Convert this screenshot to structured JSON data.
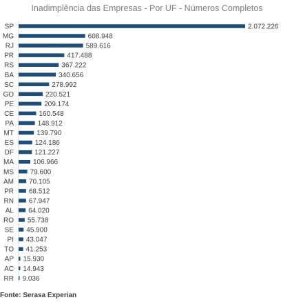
{
  "chart_data": {
    "type": "bar",
    "orientation": "horizontal",
    "title": "Inadimplência das Empresas - Por UF - Números Completos",
    "categories": [
      "SP",
      "MG",
      "RJ",
      "PR",
      "RS",
      "BA",
      "SC",
      "GO",
      "PE",
      "CE",
      "PA",
      "MT",
      "ES",
      "DF",
      "MA",
      "MS",
      "AM",
      "PR",
      "RN",
      "AL",
      "RO",
      "SE",
      "PI",
      "TO",
      "AP",
      "AC",
      "RR"
    ],
    "values": [
      2072226,
      608948,
      589616,
      417488,
      367222,
      340656,
      278992,
      220521,
      209174,
      160548,
      148912,
      139790,
      124186,
      121227,
      106966,
      79600,
      70105,
      68512,
      67947,
      64020,
      55738,
      45900,
      43047,
      41253,
      15930,
      14943,
      9036
    ],
    "value_labels": [
      "2.072.226",
      "608.948",
      "589.616",
      "417.488",
      "367.222",
      "340.656",
      "278.992",
      "220.521",
      "209.174",
      "160.548",
      "148.912",
      "139.790",
      "124.186",
      "121.227",
      "106.966",
      "79.600",
      "70.105",
      "68.512",
      "67.947",
      "64.020",
      "55.738",
      "45.900",
      "43.047",
      "41.253",
      "15.930",
      "14.943",
      "9.036"
    ],
    "bar_color": "#1f4e79",
    "xlim": [
      0,
      2072226
    ],
    "grid": false,
    "legend": "none"
  },
  "source": "Fonte: Serasa Experian"
}
